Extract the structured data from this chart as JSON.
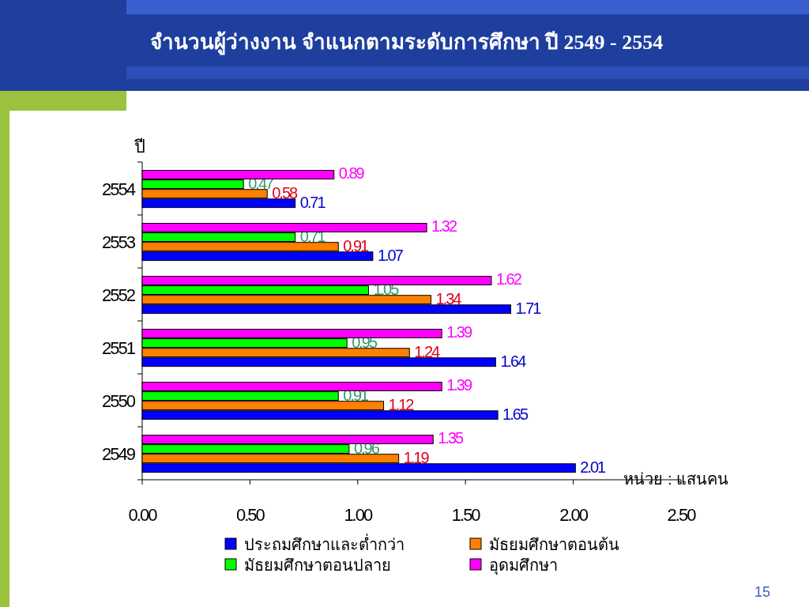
{
  "chart_data": {
    "type": "bar",
    "orientation": "horizontal",
    "title": "จำนวนผู้ว่างงาน จำแนกตามระดับการศึกษา ปี 2549 - 2554",
    "ylabel": "ปี",
    "categories": [
      "2554",
      "2553",
      "2552",
      "2551",
      "2550",
      "2549"
    ],
    "series": [
      {
        "name": "ประถมศึกษาและต่ำกว่า",
        "color": "#0000ff",
        "values": [
          0.71,
          1.07,
          1.71,
          1.64,
          1.65,
          2.01
        ]
      },
      {
        "name": "มัธยมศึกษาตอนต้น",
        "color": "#ff7f00",
        "values": [
          0.58,
          0.91,
          1.34,
          1.24,
          1.12,
          1.19
        ]
      },
      {
        "name": "มัธยมศึกษาตอนปลาย",
        "color": "#00ff00",
        "values": [
          0.47,
          0.71,
          1.05,
          0.95,
          0.91,
          0.96
        ]
      },
      {
        "name": "อุดมศึกษา",
        "color": "#ff00ff",
        "values": [
          0.89,
          1.32,
          1.62,
          1.39,
          1.39,
          1.35
        ]
      }
    ],
    "xlim": [
      0,
      2.5
    ],
    "xticks": [
      {
        "value": 0,
        "label": "0.00"
      },
      {
        "value": 0.5,
        "label": "0.50"
      },
      {
        "value": 1,
        "label": "1.00"
      },
      {
        "value": 1.5,
        "label": "1.50"
      },
      {
        "value": 2,
        "label": "2.00"
      },
      {
        "value": 2.5,
        "label": "2.50"
      }
    ],
    "data_labels": true,
    "legend": "bottom",
    "grid": false,
    "annotations": [
      "หน่วย : แสนคน",
      "15"
    ]
  }
}
